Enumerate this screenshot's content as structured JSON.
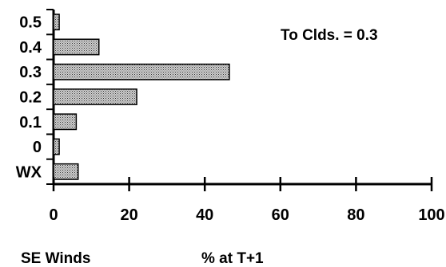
{
  "chart_data": {
    "type": "bar",
    "orientation": "horizontal",
    "categories": [
      "0.5",
      "0.4",
      "0.3",
      "0.2",
      "0.1",
      "0",
      "WX"
    ],
    "values": [
      1.5,
      12,
      46.5,
      22,
      6,
      1.5,
      6.5
    ],
    "annotation": "To Clds. = 0.3",
    "xlabel": "% at T+1",
    "footnote_left": "SE Winds",
    "xlim": [
      0,
      100
    ],
    "xticks": [
      "0",
      "20",
      "40",
      "60",
      "80",
      "100"
    ],
    "grid": false,
    "bar_fill": "#9a9a9a",
    "bar_stroke": "#000000"
  }
}
